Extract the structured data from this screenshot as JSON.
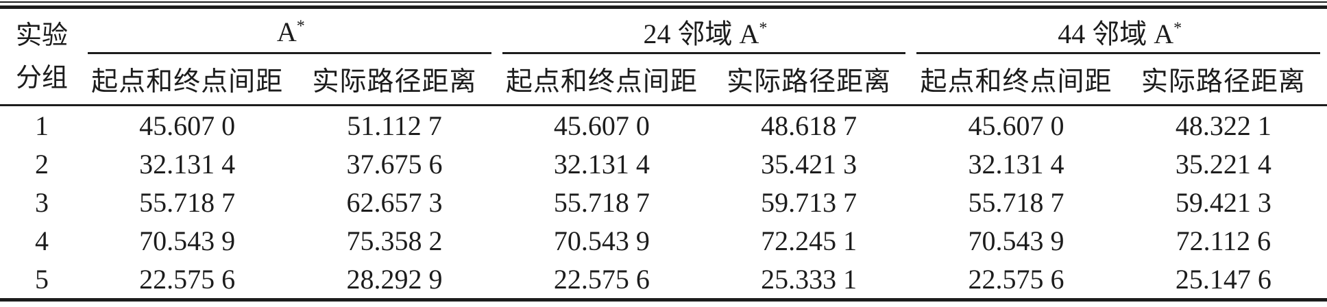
{
  "colors": {
    "ink": "#1c1c1c",
    "background": "#ffffff"
  },
  "table": {
    "row_header": {
      "line1": "实验",
      "line2": "分组"
    },
    "groups": [
      {
        "name": "A",
        "sup": "*",
        "sub_headers": [
          "起点和终点间距",
          "实际路径距离"
        ]
      },
      {
        "name": "24 邻域 A",
        "sup": "*",
        "sub_headers": [
          "起点和终点间距",
          "实际路径距离"
        ]
      },
      {
        "name": "44 邻域 A",
        "sup": "*",
        "sub_headers": [
          "起点和终点间距",
          "实际路径距离"
        ]
      }
    ],
    "rows": [
      {
        "group": "1",
        "values": [
          "45.607 0",
          "51.112 7",
          "45.607 0",
          "48.618 7",
          "45.607 0",
          "48.322 1"
        ]
      },
      {
        "group": "2",
        "values": [
          "32.131 4",
          "37.675 6",
          "32.131 4",
          "35.421 3",
          "32.131 4",
          "35.221 4"
        ]
      },
      {
        "group": "3",
        "values": [
          "55.718 7",
          "62.657 3",
          "55.718 7",
          "59.713 7",
          "55.718 7",
          "59.421 3"
        ]
      },
      {
        "group": "4",
        "values": [
          "70.543 9",
          "75.358 2",
          "70.543 9",
          "72.245 1",
          "70.543 9",
          "72.112 6"
        ]
      },
      {
        "group": "5",
        "values": [
          "22.575 6",
          "28.292 9",
          "22.575 6",
          "25.333 1",
          "22.575 6",
          "25.147 6"
        ]
      }
    ]
  }
}
